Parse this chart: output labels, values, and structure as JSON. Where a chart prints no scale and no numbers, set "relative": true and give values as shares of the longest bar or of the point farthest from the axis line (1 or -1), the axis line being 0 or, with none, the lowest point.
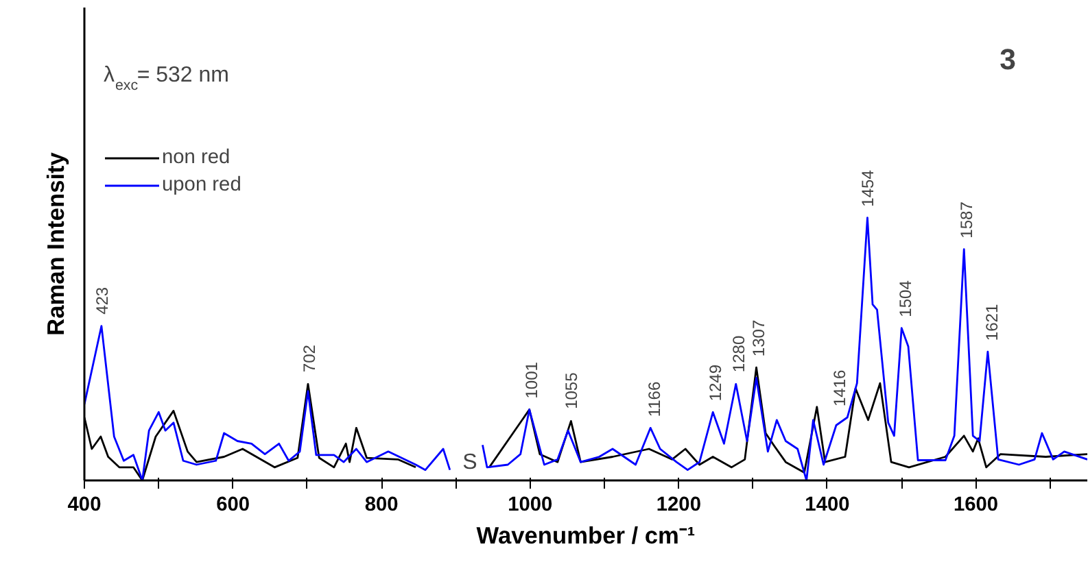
{
  "chart_data": {
    "type": "line",
    "relative": true,
    "xlabel": "Wavenumber / cm⁻¹",
    "ylabel": "Raman Intensity",
    "xlim": [
      400,
      1750
    ],
    "xticks": [
      400,
      {
        "value": 500,
        "label": null
      },
      600,
      {
        "value": 700,
        "label": null
      },
      800,
      {
        "value": 900,
        "label": null
      },
      1000,
      {
        "value": 1100,
        "label": null
      },
      1200,
      {
        "value": 1300,
        "label": null
      },
      1400,
      {
        "value": 1500,
        "label": null
      },
      1600,
      {
        "value": 1700,
        "label": null
      }
    ],
    "legend": "top left",
    "grid": false,
    "series": [
      {
        "name": "non red",
        "color": "#000000",
        "x": [
          400,
          410,
          422,
          432,
          447,
          466,
          478,
          496,
          520,
          539,
          551,
          588,
          613,
          656,
          687,
          701,
          716,
          736,
          752,
          757,
          766,
          780,
          822,
          846,
          900,
          945,
          999,
          1013,
          1037,
          1055,
          1068,
          1111,
          1160,
          1191,
          1209,
          1228,
          1246,
          1271,
          1289,
          1304.5,
          1317,
          1329,
          1344,
          1369,
          1386,
          1397,
          1424,
          1438,
          1455,
          1471,
          1486,
          1510,
          1559,
          1584,
          1596,
          1603,
          1614,
          1633,
          1694,
          1750
        ],
        "values": [
          0.24,
          0.12,
          0.167,
          0.09,
          0.05,
          0.05,
          0,
          0.167,
          0.265,
          0.11,
          0.07,
          0.09,
          0.12,
          0.05,
          0.086,
          0.367,
          0.086,
          0.05,
          0.14,
          0.07,
          0.2,
          0.086,
          0.08,
          0.05,
          null,
          0.05,
          0.27,
          0.1,
          0.07,
          0.226,
          0.07,
          0.09,
          0.12,
          0.08,
          0.12,
          0.06,
          0.09,
          0.05,
          0.08,
          0.43,
          0.18,
          0.13,
          0.07,
          0.03,
          0.28,
          0.07,
          0.09,
          0.35,
          0.23,
          0.37,
          0.07,
          0.05,
          0.09,
          0.17,
          0.11,
          0.16,
          0.05,
          0.1,
          0.09,
          0.1
        ]
      },
      {
        "name": "upon red",
        "color": "#0000ff",
        "x": [
          400,
          423,
          440,
          453,
          466,
          478,
          487,
          500,
          509,
          520,
          533,
          551,
          577,
          588,
          606,
          625,
          643,
          662,
          675,
          690,
          701,
          712,
          736,
          749,
          766,
          780,
          809,
          846,
          859,
          883,
          892,
          900,
          936,
          942,
          970,
          987,
          999,
          1019,
          1037,
          1051,
          1068,
          1093,
          1111,
          1142,
          1162,
          1175,
          1197,
          1212,
          1228,
          1246,
          1261,
          1277,
          1292,
          1304.5,
          1320,
          1332,
          1344,
          1360,
          1372,
          1381,
          1395,
          1412,
          1427,
          1440,
          1454,
          1461,
          1467,
          1482,
          1490,
          1500,
          1509,
          1522,
          1559,
          1571,
          1584,
          1596,
          1605,
          1616,
          1630,
          1658,
          1679,
          1689,
          1704,
          1719,
          1750
        ],
        "values": [
          0.29,
          0.588,
          0.167,
          0.075,
          0.097,
          0,
          0.19,
          0.26,
          0.19,
          0.22,
          0.075,
          0.06,
          0.075,
          0.18,
          0.15,
          0.14,
          0.1,
          0.14,
          0.075,
          0.11,
          0.34,
          0.097,
          0.097,
          0.07,
          0.12,
          0.07,
          0.11,
          0.06,
          0.04,
          0.12,
          0.04,
          null,
          0.135,
          0.05,
          0.06,
          0.1,
          0.27,
          0.06,
          0.08,
          0.19,
          0.07,
          0.09,
          0.12,
          0.06,
          0.2,
          0.12,
          0.07,
          0.04,
          0.07,
          0.26,
          0.14,
          0.367,
          0.15,
          0.39,
          0.11,
          0.23,
          0.15,
          0.12,
          0,
          0.23,
          0.06,
          0.21,
          0.24,
          0.37,
          1.0,
          0.67,
          0.65,
          0.22,
          0.17,
          0.58,
          0.51,
          0.077,
          0.077,
          0.17,
          0.88,
          0.17,
          0.15,
          0.49,
          0.08,
          0.06,
          0.08,
          0.18,
          0.08,
          0.11,
          0.08
        ]
      }
    ],
    "annotations": [
      "λ$_{exc}$= 532 nm",
      "3",
      "S",
      {
        "text": "423",
        "x": 423,
        "y": 0.59
      },
      {
        "text": "702",
        "x": 702,
        "y": 0.37
      },
      {
        "text": "1001",
        "x": 1001,
        "y": 0.27
      },
      {
        "text": "1055",
        "x": 1055,
        "y": 0.23
      },
      {
        "text": "1166",
        "x": 1166,
        "y": 0.2
      },
      {
        "text": "1249",
        "x": 1249,
        "y": 0.26
      },
      {
        "text": "1280",
        "x": 1280,
        "y": 0.37
      },
      {
        "text": "1307",
        "x": 1307,
        "y": 0.43
      },
      {
        "text": "1416",
        "x": 1416,
        "y": 0.24
      },
      {
        "text": "1454",
        "x": 1454,
        "y": 1.0
      },
      {
        "text": "1504",
        "x": 1504,
        "y": 0.58
      },
      {
        "text": "1587",
        "x": 1587,
        "y": 0.88
      },
      {
        "text": "1621",
        "x": 1621,
        "y": 0.49
      }
    ]
  }
}
